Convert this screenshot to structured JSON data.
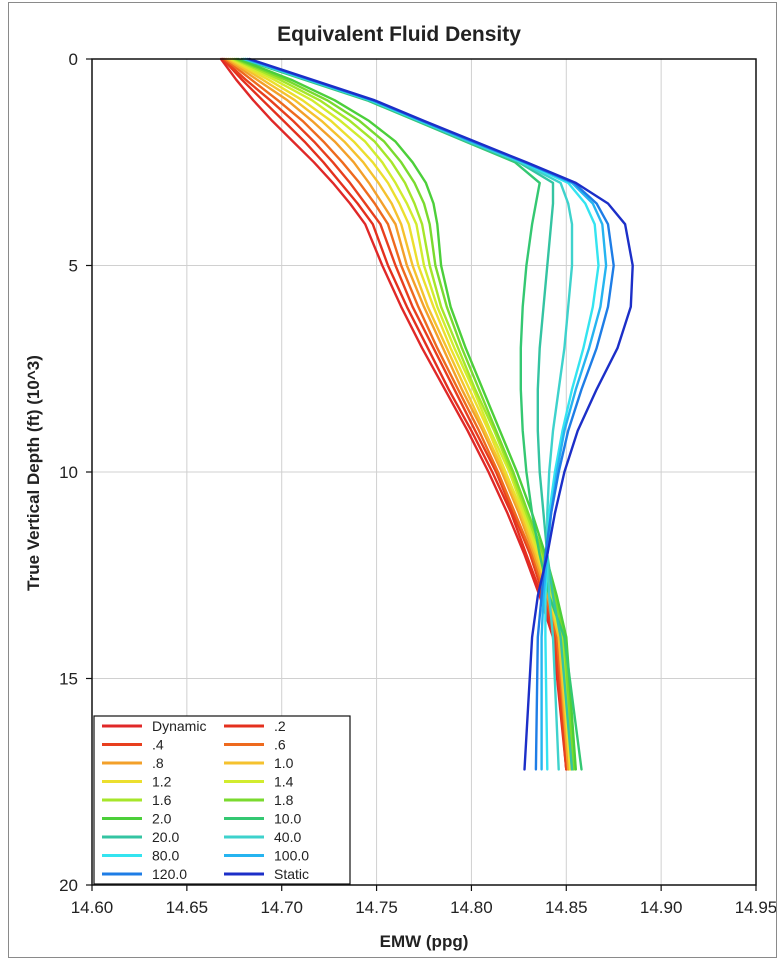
{
  "chart_data": {
    "type": "line",
    "title": "Equivalent Fluid Density",
    "xlabel": "EMW (ppg)",
    "ylabel": "True Vertical Depth (ft) (10^3)",
    "xlim": [
      14.6,
      14.95
    ],
    "ylim": [
      0,
      20
    ],
    "y_inverted": true,
    "xticks": [
      "14.60",
      "14.65",
      "14.70",
      "14.75",
      "14.80",
      "14.85",
      "14.90",
      "14.95"
    ],
    "yticks": [
      "0",
      "5",
      "10",
      "15",
      "20"
    ],
    "grid": true,
    "legend_position": "bottom-left",
    "legend_columns": 2,
    "series": [
      {
        "name": "Dynamic",
        "color": "#e02828",
        "x": [
          14.668,
          14.676,
          14.685,
          14.695,
          14.706,
          14.717,
          14.727,
          14.736,
          14.744,
          14.753,
          14.763,
          14.774,
          14.786,
          14.798,
          14.809,
          14.819,
          14.828,
          14.836,
          14.843,
          14.85
        ],
        "y": [
          0,
          0.5,
          1,
          1.5,
          2,
          2.5,
          3,
          3.5,
          4,
          5,
          6,
          7,
          8,
          9,
          10,
          11,
          12,
          13,
          14,
          17.2
        ]
      },
      {
        "name": ".2",
        "color": "#e4301e",
        "x": [
          14.669,
          14.679,
          14.69,
          14.701,
          14.712,
          14.722,
          14.731,
          14.74,
          14.748,
          14.756,
          14.766,
          14.777,
          14.788,
          14.8,
          14.811,
          14.821,
          14.829,
          14.837,
          14.844,
          14.85
        ],
        "y": [
          0,
          0.5,
          1,
          1.5,
          2,
          2.5,
          3,
          3.5,
          4,
          5,
          6,
          7,
          8,
          9,
          10,
          11,
          12,
          13,
          14,
          17.2
        ]
      },
      {
        "name": ".4",
        "color": "#e83f1e",
        "x": [
          14.669,
          14.681,
          14.694,
          14.706,
          14.717,
          14.727,
          14.736,
          14.744,
          14.752,
          14.76,
          14.769,
          14.78,
          14.791,
          14.802,
          14.813,
          14.822,
          14.831,
          14.838,
          14.844,
          14.85
        ],
        "y": [
          0,
          0.5,
          1,
          1.5,
          2,
          2.5,
          3,
          3.5,
          4,
          5,
          6,
          7,
          8,
          9,
          10,
          11,
          12,
          13,
          14,
          17.2
        ]
      },
      {
        "name": ".6",
        "color": "#ee6a1e",
        "x": [
          14.67,
          14.684,
          14.698,
          14.711,
          14.722,
          14.732,
          14.741,
          14.749,
          14.756,
          14.763,
          14.772,
          14.782,
          14.793,
          14.804,
          14.814,
          14.823,
          14.832,
          14.839,
          14.845,
          14.851
        ],
        "y": [
          0,
          0.5,
          1,
          1.5,
          2,
          2.5,
          3,
          3.5,
          4,
          5,
          6,
          7,
          8,
          9,
          10,
          11,
          12,
          13,
          14,
          17.2
        ]
      },
      {
        "name": ".8",
        "color": "#f3a02a",
        "x": [
          14.671,
          14.687,
          14.703,
          14.716,
          14.728,
          14.738,
          14.746,
          14.753,
          14.76,
          14.766,
          14.775,
          14.785,
          14.795,
          14.806,
          14.816,
          14.825,
          14.833,
          14.84,
          14.846,
          14.851
        ],
        "y": [
          0,
          0.5,
          1,
          1.5,
          2,
          2.5,
          3,
          3.5,
          4,
          5,
          6,
          7,
          8,
          9,
          10,
          11,
          12,
          13,
          14,
          17.2
        ]
      },
      {
        "name": "1.0",
        "color": "#f5c22e",
        "x": [
          14.672,
          14.69,
          14.707,
          14.721,
          14.733,
          14.743,
          14.751,
          14.758,
          14.763,
          14.769,
          14.777,
          14.787,
          14.797,
          14.807,
          14.817,
          14.826,
          14.834,
          14.841,
          14.846,
          14.852
        ],
        "y": [
          0,
          0.5,
          1,
          1.5,
          2,
          2.5,
          3,
          3.5,
          4,
          5,
          6,
          7,
          8,
          9,
          10,
          11,
          12,
          13,
          14,
          17.2
        ]
      },
      {
        "name": "1.2",
        "color": "#ecdf2e",
        "x": [
          14.673,
          14.693,
          14.711,
          14.726,
          14.738,
          14.748,
          14.756,
          14.762,
          14.767,
          14.772,
          14.78,
          14.789,
          14.799,
          14.809,
          14.818,
          14.827,
          14.835,
          14.841,
          14.847,
          14.852
        ],
        "y": [
          0,
          0.5,
          1,
          1.5,
          2,
          2.5,
          3,
          3.5,
          4,
          5,
          6,
          7,
          8,
          9,
          10,
          11,
          12,
          13,
          14,
          17.2
        ]
      },
      {
        "name": "1.4",
        "color": "#d2ec2e",
        "x": [
          14.674,
          14.696,
          14.716,
          14.731,
          14.744,
          14.753,
          14.76,
          14.766,
          14.771,
          14.775,
          14.782,
          14.791,
          14.801,
          14.81,
          14.82,
          14.828,
          14.836,
          14.842,
          14.847,
          14.853
        ],
        "y": [
          0,
          0.5,
          1,
          1.5,
          2,
          2.5,
          3,
          3.5,
          4,
          5,
          6,
          7,
          8,
          9,
          10,
          11,
          12,
          13,
          14,
          17.2
        ]
      },
      {
        "name": "1.6",
        "color": "#a6e62a",
        "x": [
          14.675,
          14.699,
          14.72,
          14.736,
          14.749,
          14.758,
          14.765,
          14.77,
          14.774,
          14.778,
          14.784,
          14.793,
          14.802,
          14.812,
          14.821,
          14.829,
          14.837,
          14.843,
          14.848,
          14.853
        ],
        "y": [
          0,
          0.5,
          1,
          1.5,
          2,
          2.5,
          3,
          3.5,
          4,
          5,
          6,
          7,
          8,
          9,
          10,
          11,
          12,
          13,
          14,
          17.2
        ]
      },
      {
        "name": "1.8",
        "color": "#7ada2e",
        "x": [
          14.676,
          14.702,
          14.724,
          14.741,
          14.754,
          14.763,
          14.77,
          14.775,
          14.778,
          14.781,
          14.787,
          14.795,
          14.804,
          14.813,
          14.822,
          14.83,
          14.838,
          14.844,
          14.849,
          14.854
        ],
        "y": [
          0,
          0.5,
          1,
          1.5,
          2,
          2.5,
          3,
          3.5,
          4,
          5,
          6,
          7,
          8,
          9,
          10,
          11,
          12,
          13,
          14,
          17.2
        ]
      },
      {
        "name": "2.0",
        "color": "#4ccf3a",
        "x": [
          14.677,
          14.705,
          14.728,
          14.746,
          14.76,
          14.769,
          14.776,
          14.78,
          14.782,
          14.784,
          14.789,
          14.797,
          14.806,
          14.815,
          14.824,
          14.832,
          14.839,
          14.845,
          14.85,
          14.855
        ],
        "y": [
          0,
          0.5,
          1,
          1.5,
          2,
          2.5,
          3,
          3.5,
          4,
          5,
          6,
          7,
          8,
          9,
          10,
          11,
          12,
          13,
          14,
          17.2
        ]
      },
      {
        "name": "10.0",
        "color": "#34c872",
        "x": [
          14.679,
          14.712,
          14.745,
          14.771,
          14.797,
          14.823,
          14.836,
          14.834,
          14.832,
          14.829,
          14.827,
          14.826,
          14.826,
          14.827,
          14.829,
          14.832,
          14.836,
          14.841,
          14.849,
          14.858
        ],
        "y": [
          0,
          0.5,
          1,
          1.5,
          2,
          2.5,
          3,
          3.5,
          4,
          5,
          6,
          7,
          8,
          9,
          10,
          11,
          12,
          13,
          14,
          17.2
        ]
      },
      {
        "name": "20.0",
        "color": "#34c4a2",
        "x": [
          14.68,
          14.713,
          14.746,
          14.772,
          14.798,
          14.825,
          14.843,
          14.843,
          14.842,
          14.84,
          14.838,
          14.836,
          14.835,
          14.835,
          14.836,
          14.838,
          14.84,
          14.843,
          14.847,
          14.853
        ],
        "y": [
          0,
          0.5,
          1,
          1.5,
          2,
          2.5,
          3,
          3.5,
          4,
          5,
          6,
          7,
          8,
          9,
          10,
          11,
          12,
          13,
          14,
          17.2
        ]
      },
      {
        "name": "40.0",
        "color": "#3ed2cc",
        "x": [
          14.68,
          14.714,
          14.747,
          14.773,
          14.799,
          14.826,
          14.847,
          14.851,
          14.853,
          14.853,
          14.851,
          14.849,
          14.846,
          14.843,
          14.841,
          14.84,
          14.84,
          14.841,
          14.843,
          14.846
        ],
        "y": [
          0,
          0.5,
          1,
          1.5,
          2,
          2.5,
          3,
          3.5,
          4,
          5,
          6,
          7,
          8,
          9,
          10,
          11,
          12,
          13,
          14,
          17.2
        ]
      },
      {
        "name": "80.0",
        "color": "#34e4f0",
        "x": [
          14.681,
          14.714,
          14.747,
          14.773,
          14.8,
          14.827,
          14.851,
          14.86,
          14.865,
          14.867,
          14.864,
          14.859,
          14.853,
          14.848,
          14.844,
          14.841,
          14.84,
          14.839,
          14.839,
          14.84
        ],
        "y": [
          0,
          0.5,
          1,
          1.5,
          2,
          2.5,
          3,
          3.5,
          4,
          5,
          6,
          7,
          8,
          9,
          10,
          11,
          12,
          13,
          14,
          17.2
        ]
      },
      {
        "name": "100.0",
        "color": "#26b4f0",
        "x": [
          14.681,
          14.715,
          14.748,
          14.774,
          14.8,
          14.828,
          14.853,
          14.864,
          14.869,
          14.871,
          14.868,
          14.862,
          14.855,
          14.849,
          14.845,
          14.842,
          14.84,
          14.838,
          14.837,
          14.837
        ],
        "y": [
          0,
          0.5,
          1,
          1.5,
          2,
          2.5,
          3,
          3.5,
          4,
          5,
          6,
          7,
          8,
          9,
          10,
          11,
          12,
          13,
          14,
          17.2
        ]
      },
      {
        "name": "120.0",
        "color": "#1e7de6",
        "x": [
          14.682,
          14.715,
          14.748,
          14.774,
          14.801,
          14.828,
          14.854,
          14.866,
          14.872,
          14.875,
          14.872,
          14.866,
          14.858,
          14.851,
          14.846,
          14.842,
          14.839,
          14.837,
          14.835,
          14.834
        ],
        "y": [
          0,
          0.5,
          1,
          1.5,
          2,
          2.5,
          3,
          3.5,
          4,
          5,
          6,
          7,
          8,
          9,
          10,
          11,
          12,
          13,
          14,
          17.2
        ]
      },
      {
        "name": "Static",
        "color": "#1c2fc8",
        "x": [
          14.683,
          14.716,
          14.749,
          14.775,
          14.802,
          14.829,
          14.855,
          14.872,
          14.881,
          14.885,
          14.884,
          14.877,
          14.866,
          14.856,
          14.849,
          14.844,
          14.84,
          14.835,
          14.832,
          14.828
        ],
        "y": [
          0,
          0.5,
          1,
          1.5,
          2,
          2.5,
          3,
          3.5,
          4,
          5,
          6,
          7,
          8,
          9,
          10,
          11,
          12,
          13,
          14,
          17.2
        ]
      }
    ]
  }
}
